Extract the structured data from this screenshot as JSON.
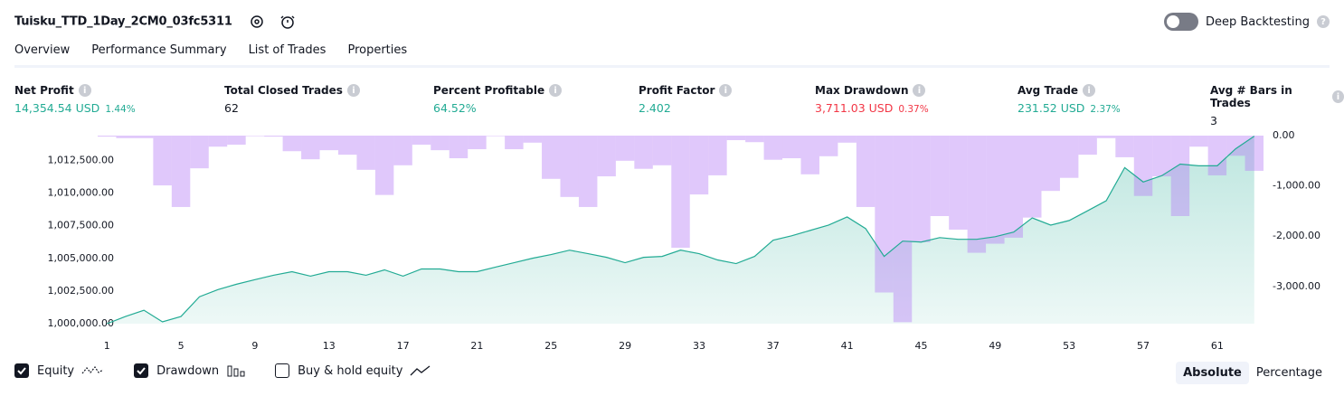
{
  "header": {
    "title": "Tuisku_TTD_1Day_2CM0_03fc5311",
    "deep_backtesting": "Deep Backtesting"
  },
  "tabs": [
    "Overview",
    "Performance Summary",
    "List of Trades",
    "Properties"
  ],
  "metrics": [
    {
      "label": "Net Profit",
      "value": "14,354.54 USD",
      "percent": "1.44%",
      "color": "#22ab94"
    },
    {
      "label": "Total Closed Trades",
      "value": "62",
      "color": "#131722"
    },
    {
      "label": "Percent Profitable",
      "value": "64.52%",
      "color": "#22ab94"
    },
    {
      "label": "Profit Factor",
      "value": "2.402",
      "color": "#22ab94"
    },
    {
      "label": "Max Drawdown",
      "value": "3,711.03 USD",
      "percent": "0.37%",
      "color": "#f23645"
    },
    {
      "label": "Avg Trade",
      "value": "231.52 USD",
      "percent": "2.37%",
      "color": "#22ab94"
    },
    {
      "label": "Avg # Bars in Trades",
      "value": "3",
      "color": "#131722"
    }
  ],
  "chart_data": {
    "type": "equity-drawdown",
    "x": [
      1,
      2,
      3,
      4,
      5,
      6,
      7,
      8,
      9,
      10,
      11,
      12,
      13,
      14,
      15,
      16,
      17,
      18,
      19,
      20,
      21,
      22,
      23,
      24,
      25,
      26,
      27,
      28,
      29,
      30,
      31,
      32,
      33,
      34,
      35,
      36,
      37,
      38,
      39,
      40,
      41,
      42,
      43,
      44,
      45,
      46,
      47,
      48,
      49,
      50,
      51,
      52,
      53,
      54,
      55,
      56,
      57,
      58,
      59,
      60,
      61,
      62,
      63
    ],
    "xlim": [
      0.5,
      63.5
    ],
    "xticks": [
      1,
      5,
      9,
      13,
      17,
      21,
      25,
      29,
      33,
      37,
      41,
      45,
      49,
      53,
      57,
      61
    ],
    "ylim": [
      1000000,
      1014400
    ],
    "yticks": [
      {
        "value": 1000000,
        "label": "1,000,000.00"
      },
      {
        "value": 1002500,
        "label": "1,002,500.00"
      },
      {
        "value": 1005000,
        "label": "1,005,000.00"
      },
      {
        "value": 1007500,
        "label": "1,007,500.00"
      },
      {
        "value": 1010000,
        "label": "1,010,000.00"
      },
      {
        "value": 1012500,
        "label": "1,012,500.00"
      }
    ],
    "y2lim": [
      -3740,
      0
    ],
    "y2ticks": [
      {
        "value": 0,
        "label": "0.00"
      },
      {
        "value": -1000,
        "label": "-1,000.00"
      },
      {
        "value": -2000,
        "label": "-2,000.00"
      },
      {
        "value": -3000,
        "label": "-3,000.00"
      }
    ],
    "series": [
      {
        "name": "Equity",
        "color": "#22ab94",
        "values": [
          1000000,
          1000550,
          1001030,
          1000140,
          1000550,
          1002060,
          1002610,
          1003020,
          1003370,
          1003710,
          1003980,
          1003640,
          1003980,
          1003980,
          1003710,
          1004120,
          1003640,
          1004190,
          1004190,
          1003980,
          1003980,
          1004330,
          1004670,
          1005010,
          1005290,
          1005630,
          1005360,
          1005080,
          1004670,
          1005080,
          1005150,
          1005630,
          1005360,
          1004880,
          1004600,
          1005150,
          1006390,
          1006730,
          1007140,
          1007550,
          1008170,
          1007280,
          1005150,
          1006320,
          1006250,
          1006590,
          1006460,
          1006460,
          1006660,
          1007010,
          1008100,
          1007550,
          1007900,
          1008650,
          1009410,
          1011950,
          1010850,
          1011330,
          1012220,
          1012090,
          1012090,
          1013400,
          1014354.54
        ]
      },
      {
        "name": "Drawdown",
        "color": "#b57cf6",
        "axis": "y2",
        "values": [
          -20,
          -50,
          -50,
          -990,
          -1420,
          -650,
          -220,
          -180,
          -10,
          -20,
          -310,
          -470,
          -290,
          -380,
          -680,
          -1180,
          -590,
          -180,
          -290,
          -450,
          -270,
          -10,
          -270,
          -140,
          -860,
          -1220,
          -1420,
          -810,
          -500,
          -660,
          -590,
          -2230,
          -1170,
          -790,
          -90,
          -130,
          -480,
          -450,
          -770,
          -410,
          -140,
          -1420,
          -3120,
          -3711.03,
          -2120,
          -1600,
          -1870,
          -2330,
          -2150,
          -2030,
          -1630,
          -1100,
          -840,
          -380,
          -50,
          -430,
          -1200,
          -810,
          -1600,
          -220,
          -790,
          -400,
          -700
        ]
      }
    ]
  },
  "footer": {
    "buy_hold": "Buy & hold equity",
    "modes": [
      "Absolute",
      "Percentage"
    ]
  }
}
